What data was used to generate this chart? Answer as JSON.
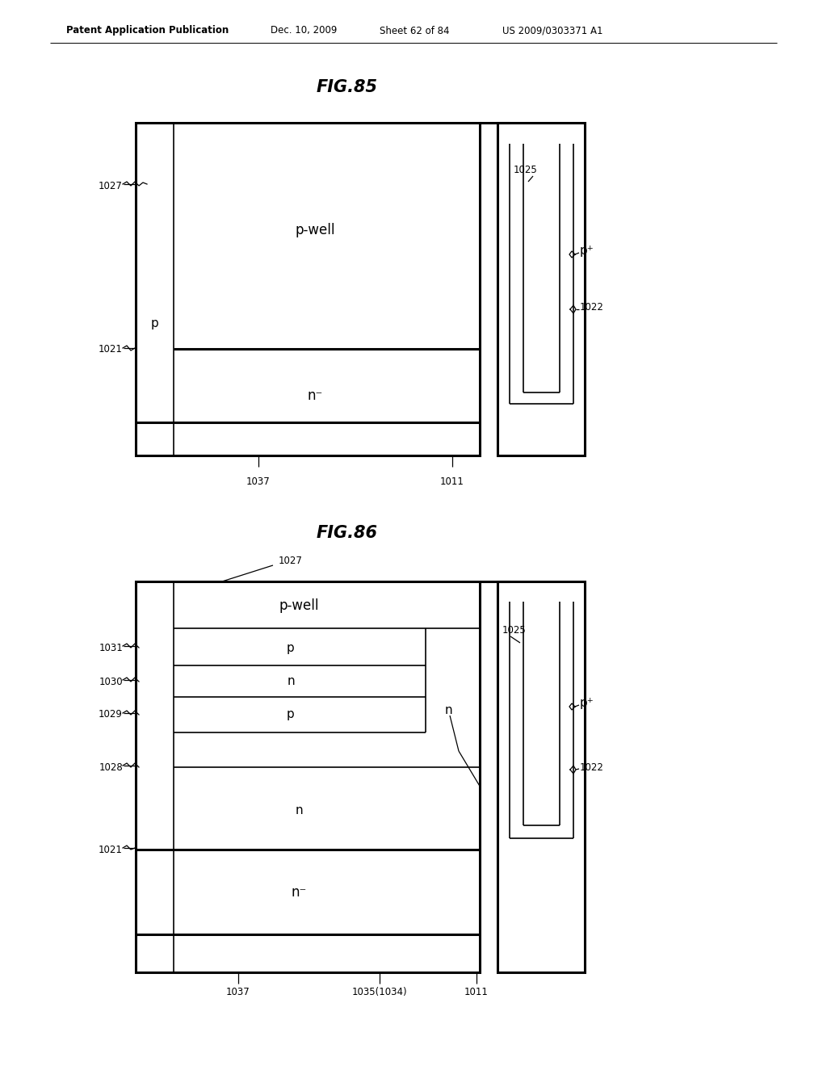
{
  "bg_color": "#ffffff",
  "header_text": "Patent Application Publication",
  "header_date": "Dec. 10, 2009",
  "header_sheet": "Sheet 62 of 84",
  "header_patent": "US 2009/0303371 A1",
  "fig85_title": "FIG.85",
  "fig86_title": "FIG.86",
  "line_color": "#000000",
  "lw_thin": 1.2,
  "lw_thick": 2.2
}
